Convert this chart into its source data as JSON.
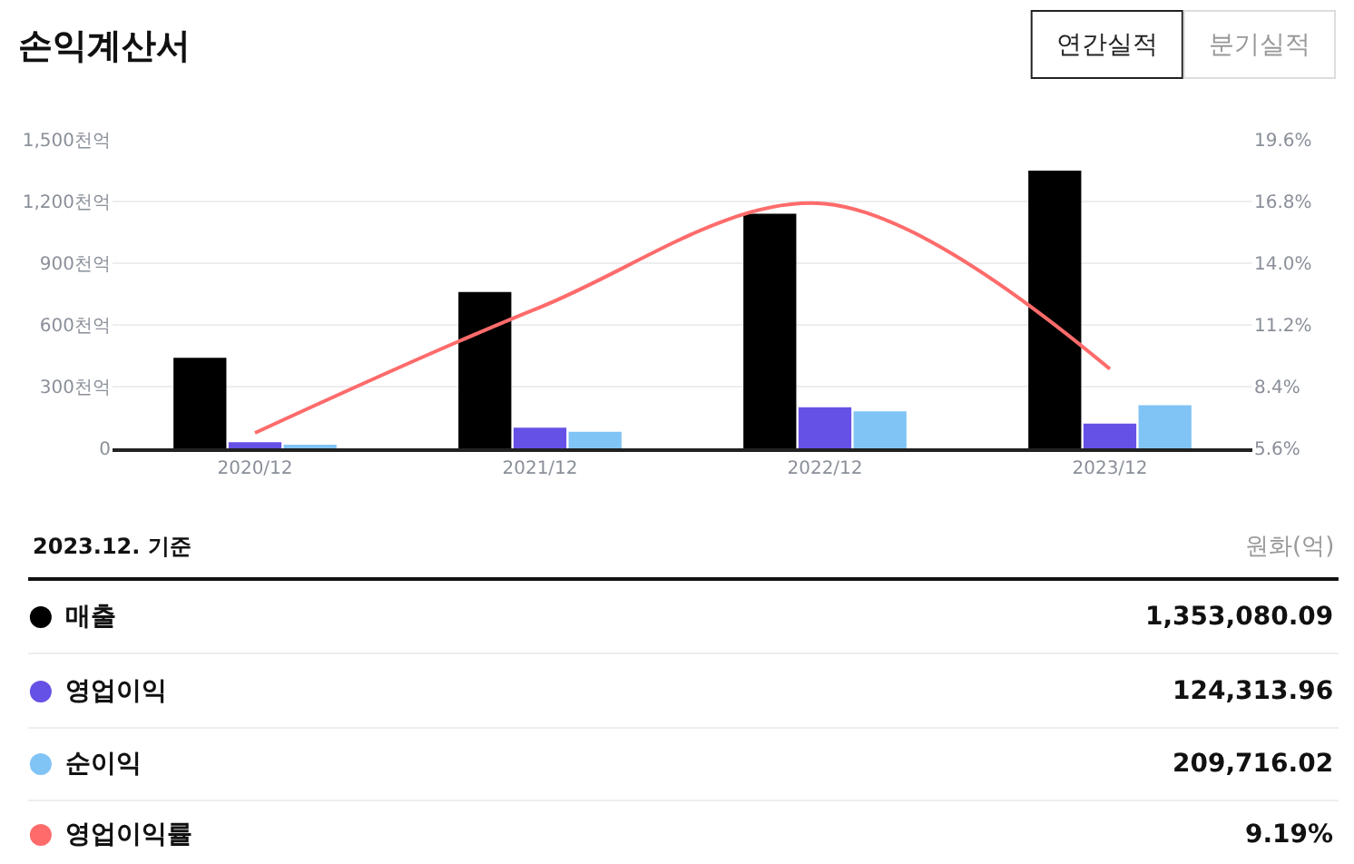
{
  "chart_data": {
    "type": "bar",
    "title": "손익계산서",
    "categories": [
      "2020/12",
      "2021/12",
      "2022/12",
      "2023/12"
    ],
    "series": [
      {
        "name": "매출",
        "color": "#000000",
        "values": [
          440,
          760,
          1140,
          1350
        ]
      },
      {
        "name": "영업이익",
        "color": "#6651e6",
        "values": [
          30,
          100,
          200,
          120
        ]
      },
      {
        "name": "순이익",
        "color": "#80c4f5",
        "values": [
          10,
          80,
          180,
          210
        ]
      },
      {
        "name": "영업이익률",
        "color": "#ff6b6b",
        "type": "line",
        "axis": "y2",
        "values": [
          6.3,
          12.0,
          16.7,
          9.2
        ]
      }
    ],
    "ylim": [
      0,
      1500
    ],
    "yticks": [
      {
        "value": 0,
        "label": "0"
      },
      {
        "value": 300,
        "label": "300천억"
      },
      {
        "value": 600,
        "label": "600천억"
      },
      {
        "value": 900,
        "label": "900천억"
      },
      {
        "value": 1200,
        "label": "1,200천억"
      },
      {
        "value": 1500,
        "label": "1,500천억"
      }
    ],
    "y2lim": [
      5.6,
      19.6
    ],
    "y2ticks": [
      {
        "value": 5.6,
        "label": "5.6%"
      },
      {
        "value": 8.4,
        "label": "8.4%"
      },
      {
        "value": 11.2,
        "label": "11.2%"
      },
      {
        "value": 14.0,
        "label": "14.0%"
      },
      {
        "value": 16.8,
        "label": "16.8%"
      },
      {
        "value": 19.6,
        "label": "19.6%"
      }
    ],
    "grid": "y",
    "legend": "bottom",
    "marker": "none",
    "annotations": [
      "2023.12. 기준",
      "원화(억)",
      "연간실적",
      "분기실적",
      "1,353,080.09",
      "124,313.96",
      "209,716.02",
      "9.19%"
    ]
  }
}
